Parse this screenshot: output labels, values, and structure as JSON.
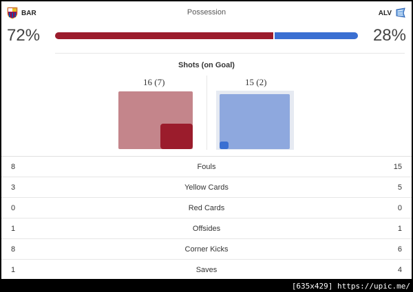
{
  "home": {
    "abbr": "BAR",
    "possession": "72%",
    "possession_value": 72,
    "shots": "16 (7)",
    "shots_total": 16,
    "shots_on_goal": 7,
    "color": "#9b1c2c",
    "crest_icon": "barcelona-crest-icon"
  },
  "away": {
    "abbr": "ALV",
    "possession": "28%",
    "possession_value": 28,
    "shots": "15 (2)",
    "shots_total": 15,
    "shots_on_goal": 2,
    "color": "#3a6fd2",
    "crest_icon": "alaves-crest-icon"
  },
  "possession_title": "Possession",
  "shots_title": "Shots (on Goal)",
  "stats": [
    {
      "label": "Fouls",
      "home": "8",
      "away": "15"
    },
    {
      "label": "Yellow Cards",
      "home": "3",
      "away": "5"
    },
    {
      "label": "Red Cards",
      "home": "0",
      "away": "0"
    },
    {
      "label": "Offsides",
      "home": "1",
      "away": "1"
    },
    {
      "label": "Corner Kicks",
      "home": "8",
      "away": "6"
    },
    {
      "label": "Saves",
      "home": "1",
      "away": "4"
    }
  ],
  "watermark": "[635x429] https://upic.me/"
}
